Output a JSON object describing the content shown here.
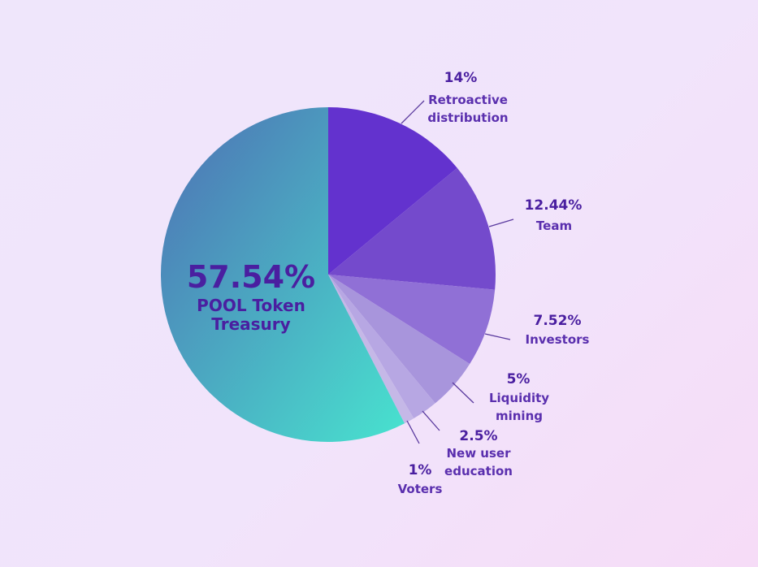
{
  "chart_data": {
    "type": "pie",
    "start_angle_deg": 0,
    "direction": "clockwise",
    "slices": [
      {
        "value": 14,
        "pct_label": "14%",
        "label_lines": [
          "Retroactive",
          "distribution"
        ],
        "color": "#6a36d8"
      },
      {
        "value": 12.44,
        "pct_label": "12.44%",
        "label_lines": [
          "Team"
        ],
        "color": "#7c4fd6"
      },
      {
        "value": 7.52,
        "pct_label": "7.52%",
        "label_lines": [
          "Investors"
        ],
        "color": "#9a78e0"
      },
      {
        "value": 5,
        "pct_label": "5%",
        "label_lines": [
          "Liquidity",
          "mining"
        ],
        "color": "#b3a0e6"
      },
      {
        "value": 2.5,
        "pct_label": "2.5%",
        "label_lines": [
          "New user",
          "education"
        ],
        "color": "#c4b4ee"
      },
      {
        "value": 1,
        "pct_label": "1%",
        "label_lines": [
          "Voters"
        ],
        "color": "#d2c6f2"
      },
      {
        "value": 57.54,
        "pct_label": "57.54%",
        "label_lines": [
          "POOL Token",
          "Treasury"
        ],
        "color": "gradient"
      }
    ],
    "treasury_gradient": [
      "#4e6fb4",
      "#48e3cf"
    ]
  }
}
